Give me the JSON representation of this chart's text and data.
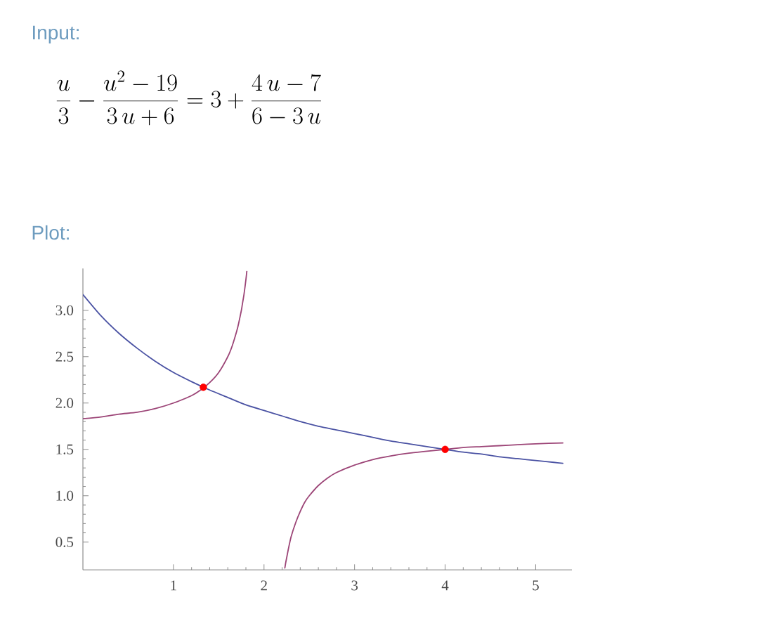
{
  "chart_data": {
    "type": "line",
    "title": "\\frac{u}{3}-\\frac{u^{2}-19}{3\\,u+6}=3+\\frac{4\\,u-7}{6-3\\,u}",
    "annotations": [
      "Input:",
      "Plot:"
    ],
    "xlim": [
      0,
      5.4
    ],
    "ylim": [
      0.2,
      3.45
    ],
    "xticks": [
      1,
      2,
      3,
      4,
      5
    ],
    "yticks": [
      {
        "value": 0.5,
        "label": "0.5"
      },
      {
        "value": 1,
        "label": "1.0"
      },
      {
        "value": 1.5,
        "label": "1.5"
      },
      {
        "value": 2,
        "label": "2.0"
      },
      {
        "value": 2.5,
        "label": "2.5"
      },
      {
        "value": 3,
        "label": "3.0"
      }
    ],
    "line_style": "solid",
    "series": [
      {
        "color": "#4a52a3",
        "x": [
          0,
          0.2,
          0.4,
          0.6,
          0.8,
          1,
          1.2,
          1.4,
          1.6,
          1.8,
          2,
          2.2,
          2.4,
          2.6,
          2.8,
          3,
          3.2,
          3.4,
          3.6,
          3.8,
          4,
          4.2,
          4.4,
          4.6,
          4.8,
          5,
          5.2,
          5.3
        ],
        "values": [
          3.17,
          2.94,
          2.75,
          2.59,
          2.45,
          2.33,
          2.23,
          2.14,
          2.06,
          1.98,
          1.92,
          1.86,
          1.8,
          1.75,
          1.71,
          1.67,
          1.63,
          1.59,
          1.56,
          1.53,
          1.5,
          1.47,
          1.45,
          1.42,
          1.4,
          1.38,
          1.36,
          1.35
        ]
      },
      {
        "color": "#9c4577",
        "x": [
          0,
          0.2,
          0.4,
          0.6,
          0.8,
          1,
          1.2,
          1.3,
          1.4,
          1.5,
          1.6,
          1.65,
          1.7,
          1.72,
          1.75,
          1.76,
          1.78,
          1.8,
          1.81,
          2,
          2.23,
          2.24,
          2.25,
          2.27,
          2.3,
          2.35,
          2.4,
          2.45,
          2.5,
          2.6,
          2.7,
          2.8,
          3,
          3.2,
          3.4,
          3.6,
          3.8,
          4,
          4.2,
          4.4,
          4.6,
          4.8,
          5,
          5.3
        ],
        "values": [
          1.83,
          1.85,
          1.88,
          1.9,
          1.94,
          2,
          2.08,
          2.14,
          2.22,
          2.33,
          2.5,
          2.62,
          2.78,
          2.86,
          3,
          3.06,
          3.18,
          3.33,
          3.42,
          null,
          0.22,
          0.28,
          0.33,
          0.43,
          0.56,
          0.71,
          0.83,
          0.93,
          1,
          1.11,
          1.19,
          1.25,
          1.33,
          1.39,
          1.43,
          1.46,
          1.48,
          1.5,
          1.52,
          1.53,
          1.54,
          1.55,
          1.56,
          1.57
        ]
      },
      {
        "type": "scatter",
        "color": "#ff0000",
        "x": [
          1.33,
          4
        ],
        "values": [
          2.17,
          1.5
        ]
      }
    ]
  }
}
